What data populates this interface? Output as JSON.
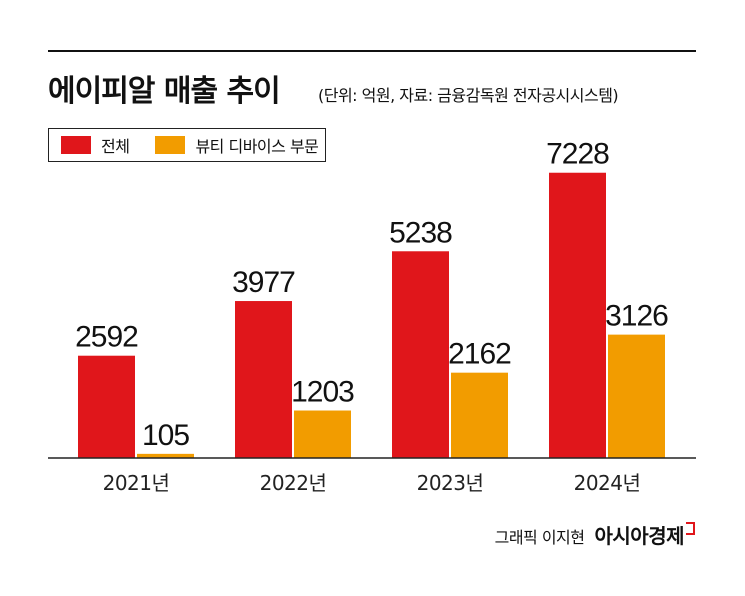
{
  "header": {
    "title": "에이피알 매출 추이",
    "subtitle": "(단위: 억원, 자료: 금융감독원 전자공시시스템)"
  },
  "credit": {
    "author": "그래픽 이지현",
    "brand": "아시아경제"
  },
  "colors": {
    "total": "#e0161b",
    "beauty_device": "#f29c00"
  },
  "chart_data": {
    "type": "bar",
    "categories": [
      "2021년",
      "2022년",
      "2023년",
      "2024년"
    ],
    "series": [
      {
        "name": "전체",
        "values": [
          2592,
          3977,
          5238,
          7228
        ],
        "color": "#e0161b"
      },
      {
        "name": "뷰티 디바이스 부문",
        "values": [
          105,
          1203,
          2162,
          3126
        ],
        "color": "#f29c00"
      }
    ],
    "title": "에이피알 매출 추이",
    "unit": "억원",
    "ylim": [
      0,
      7500
    ],
    "grid": false,
    "legend": "top-left"
  }
}
